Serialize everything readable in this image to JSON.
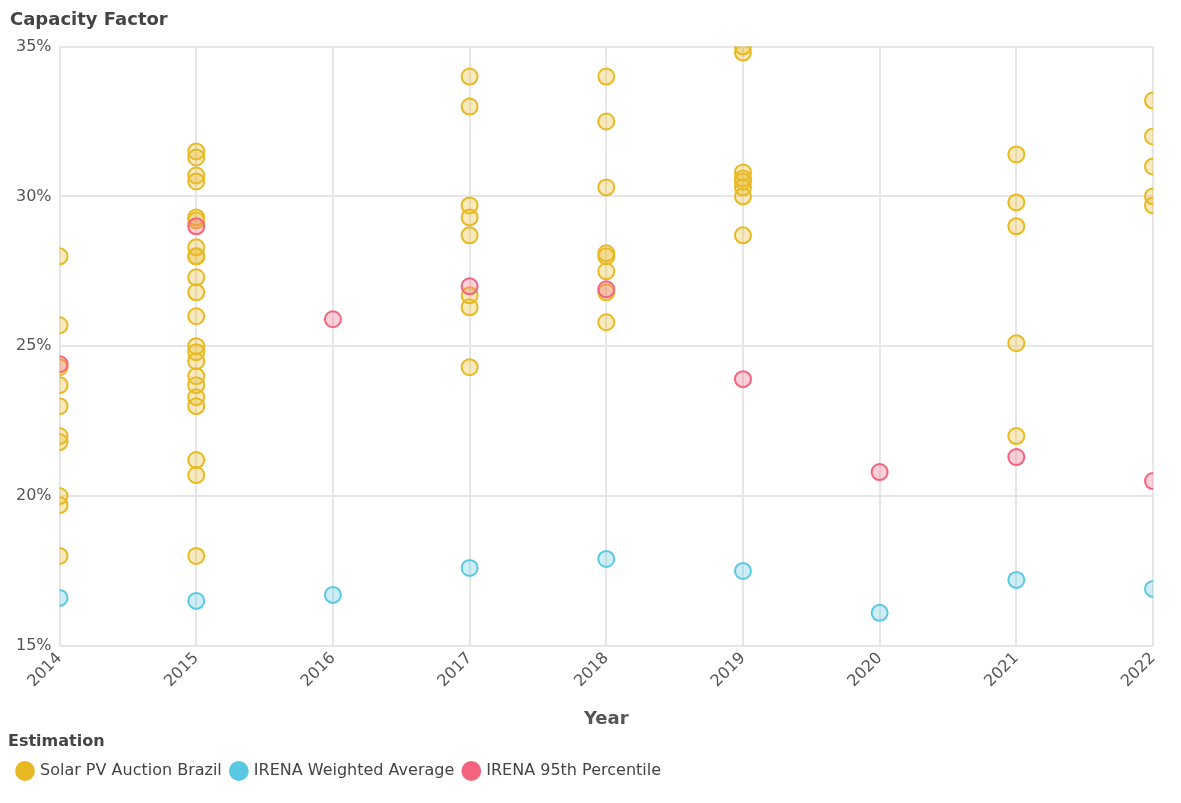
{
  "chart_data": {
    "type": "scatter",
    "ylabel": "Capacity Factor",
    "xlabel": "Year",
    "legend_title": "Estimation",
    "legend": "bottom left",
    "grid": true,
    "marker": "circle",
    "xlim": [
      2014,
      2022
    ],
    "xticks": [
      2014,
      2015,
      2016,
      2017,
      2018,
      2019,
      2020,
      2021,
      2022
    ],
    "ylim": [
      15,
      35
    ],
    "yticks": [
      {
        "value": 15,
        "label": "15%"
      },
      {
        "value": 20,
        "label": "20%"
      },
      {
        "value": 25,
        "label": "25%"
      },
      {
        "value": 30,
        "label": "30%"
      },
      {
        "value": 35,
        "label": "35%"
      }
    ],
    "series": [
      {
        "name": "Solar PV Auction Brazil",
        "color": "#e8b923",
        "x": [
          2014,
          2014,
          2014,
          2014,
          2014,
          2014,
          2014,
          2014,
          2014,
          2014,
          2015,
          2015,
          2015,
          2015,
          2015,
          2015,
          2015,
          2015,
          2015,
          2015,
          2015,
          2015,
          2015,
          2015,
          2015,
          2015,
          2015,
          2015,
          2015,
          2015,
          2015,
          2015,
          2017,
          2017,
          2017,
          2017,
          2017,
          2017,
          2017,
          2017,
          2018,
          2018,
          2018,
          2018,
          2018,
          2018,
          2018,
          2018,
          2019,
          2019,
          2019,
          2019,
          2019,
          2019,
          2019,
          2019,
          2021,
          2021,
          2021,
          2021,
          2021,
          2022,
          2022,
          2022,
          2022,
          2022
        ],
        "values": [
          28.0,
          25.7,
          24.3,
          23.7,
          23.0,
          22.0,
          21.8,
          20.0,
          19.7,
          18.0,
          31.5,
          31.3,
          30.7,
          30.5,
          29.3,
          29.2,
          28.3,
          28.0,
          28.0,
          27.3,
          26.8,
          26.0,
          25.0,
          24.8,
          24.5,
          24.0,
          23.7,
          23.3,
          23.0,
          21.2,
          20.7,
          18.0,
          34.0,
          33.0,
          29.7,
          29.3,
          28.7,
          26.7,
          26.3,
          24.3,
          34.0,
          32.5,
          30.3,
          28.1,
          28.0,
          27.5,
          26.8,
          25.8,
          35.0,
          34.8,
          30.8,
          30.6,
          30.5,
          30.3,
          30.0,
          28.7,
          31.4,
          29.8,
          29.0,
          25.1,
          22.0,
          33.2,
          32.0,
          31.0,
          30.0,
          29.7
        ]
      },
      {
        "name": "IRENA Weighted Average",
        "color": "#5bc8e3",
        "x": [
          2014,
          2015,
          2016,
          2017,
          2018,
          2019,
          2020,
          2021,
          2022
        ],
        "values": [
          16.6,
          16.5,
          16.7,
          17.6,
          17.9,
          17.5,
          16.1,
          17.2,
          16.9
        ]
      },
      {
        "name": "IRENA 95th Percentile",
        "color": "#f4637e",
        "x": [
          2014,
          2015,
          2016,
          2017,
          2018,
          2019,
          2020,
          2021,
          2022
        ],
        "values": [
          24.4,
          29.0,
          25.9,
          27.0,
          26.9,
          23.9,
          20.8,
          21.3,
          20.5
        ]
      }
    ]
  }
}
